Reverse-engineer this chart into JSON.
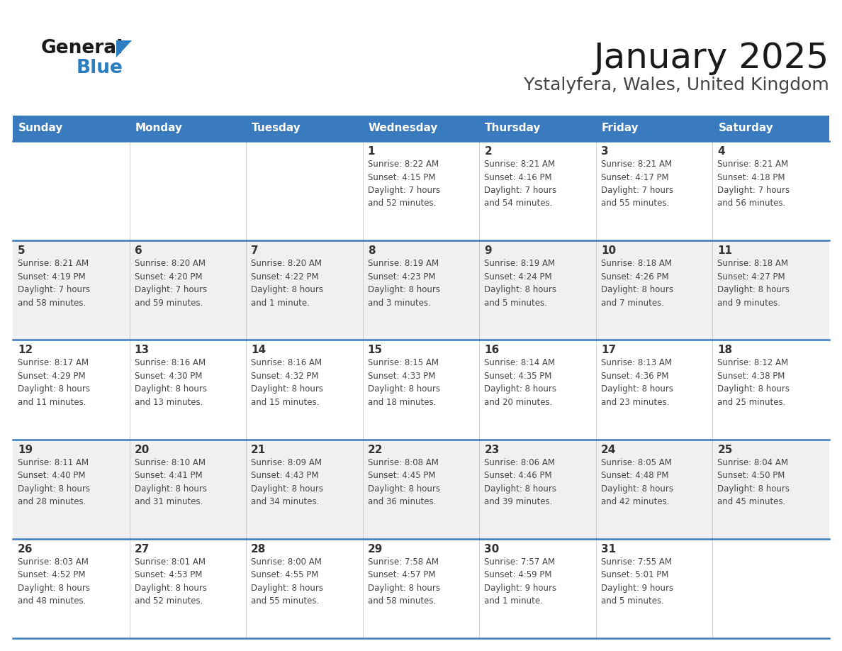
{
  "title": "January 2025",
  "subtitle": "Ystalyfera, Wales, United Kingdom",
  "days_of_week": [
    "Sunday",
    "Monday",
    "Tuesday",
    "Wednesday",
    "Thursday",
    "Friday",
    "Saturday"
  ],
  "header_bg": "#3a7abf",
  "header_text": "#ffffff",
  "row_bg_odd": "#ffffff",
  "row_bg_even": "#f0f0f0",
  "cell_text_color": "#444444",
  "day_num_color": "#333333",
  "divider_color": "#3a7abf",
  "calendar_data": [
    [
      {
        "day": "",
        "info": ""
      },
      {
        "day": "",
        "info": ""
      },
      {
        "day": "",
        "info": ""
      },
      {
        "day": "1",
        "info": "Sunrise: 8:22 AM\nSunset: 4:15 PM\nDaylight: 7 hours\nand 52 minutes."
      },
      {
        "day": "2",
        "info": "Sunrise: 8:21 AM\nSunset: 4:16 PM\nDaylight: 7 hours\nand 54 minutes."
      },
      {
        "day": "3",
        "info": "Sunrise: 8:21 AM\nSunset: 4:17 PM\nDaylight: 7 hours\nand 55 minutes."
      },
      {
        "day": "4",
        "info": "Sunrise: 8:21 AM\nSunset: 4:18 PM\nDaylight: 7 hours\nand 56 minutes."
      }
    ],
    [
      {
        "day": "5",
        "info": "Sunrise: 8:21 AM\nSunset: 4:19 PM\nDaylight: 7 hours\nand 58 minutes."
      },
      {
        "day": "6",
        "info": "Sunrise: 8:20 AM\nSunset: 4:20 PM\nDaylight: 7 hours\nand 59 minutes."
      },
      {
        "day": "7",
        "info": "Sunrise: 8:20 AM\nSunset: 4:22 PM\nDaylight: 8 hours\nand 1 minute."
      },
      {
        "day": "8",
        "info": "Sunrise: 8:19 AM\nSunset: 4:23 PM\nDaylight: 8 hours\nand 3 minutes."
      },
      {
        "day": "9",
        "info": "Sunrise: 8:19 AM\nSunset: 4:24 PM\nDaylight: 8 hours\nand 5 minutes."
      },
      {
        "day": "10",
        "info": "Sunrise: 8:18 AM\nSunset: 4:26 PM\nDaylight: 8 hours\nand 7 minutes."
      },
      {
        "day": "11",
        "info": "Sunrise: 8:18 AM\nSunset: 4:27 PM\nDaylight: 8 hours\nand 9 minutes."
      }
    ],
    [
      {
        "day": "12",
        "info": "Sunrise: 8:17 AM\nSunset: 4:29 PM\nDaylight: 8 hours\nand 11 minutes."
      },
      {
        "day": "13",
        "info": "Sunrise: 8:16 AM\nSunset: 4:30 PM\nDaylight: 8 hours\nand 13 minutes."
      },
      {
        "day": "14",
        "info": "Sunrise: 8:16 AM\nSunset: 4:32 PM\nDaylight: 8 hours\nand 15 minutes."
      },
      {
        "day": "15",
        "info": "Sunrise: 8:15 AM\nSunset: 4:33 PM\nDaylight: 8 hours\nand 18 minutes."
      },
      {
        "day": "16",
        "info": "Sunrise: 8:14 AM\nSunset: 4:35 PM\nDaylight: 8 hours\nand 20 minutes."
      },
      {
        "day": "17",
        "info": "Sunrise: 8:13 AM\nSunset: 4:36 PM\nDaylight: 8 hours\nand 23 minutes."
      },
      {
        "day": "18",
        "info": "Sunrise: 8:12 AM\nSunset: 4:38 PM\nDaylight: 8 hours\nand 25 minutes."
      }
    ],
    [
      {
        "day": "19",
        "info": "Sunrise: 8:11 AM\nSunset: 4:40 PM\nDaylight: 8 hours\nand 28 minutes."
      },
      {
        "day": "20",
        "info": "Sunrise: 8:10 AM\nSunset: 4:41 PM\nDaylight: 8 hours\nand 31 minutes."
      },
      {
        "day": "21",
        "info": "Sunrise: 8:09 AM\nSunset: 4:43 PM\nDaylight: 8 hours\nand 34 minutes."
      },
      {
        "day": "22",
        "info": "Sunrise: 8:08 AM\nSunset: 4:45 PM\nDaylight: 8 hours\nand 36 minutes."
      },
      {
        "day": "23",
        "info": "Sunrise: 8:06 AM\nSunset: 4:46 PM\nDaylight: 8 hours\nand 39 minutes."
      },
      {
        "day": "24",
        "info": "Sunrise: 8:05 AM\nSunset: 4:48 PM\nDaylight: 8 hours\nand 42 minutes."
      },
      {
        "day": "25",
        "info": "Sunrise: 8:04 AM\nSunset: 4:50 PM\nDaylight: 8 hours\nand 45 minutes."
      }
    ],
    [
      {
        "day": "26",
        "info": "Sunrise: 8:03 AM\nSunset: 4:52 PM\nDaylight: 8 hours\nand 48 minutes."
      },
      {
        "day": "27",
        "info": "Sunrise: 8:01 AM\nSunset: 4:53 PM\nDaylight: 8 hours\nand 52 minutes."
      },
      {
        "day": "28",
        "info": "Sunrise: 8:00 AM\nSunset: 4:55 PM\nDaylight: 8 hours\nand 55 minutes."
      },
      {
        "day": "29",
        "info": "Sunrise: 7:58 AM\nSunset: 4:57 PM\nDaylight: 8 hours\nand 58 minutes."
      },
      {
        "day": "30",
        "info": "Sunrise: 7:57 AM\nSunset: 4:59 PM\nDaylight: 9 hours\nand 1 minute."
      },
      {
        "day": "31",
        "info": "Sunrise: 7:55 AM\nSunset: 5:01 PM\nDaylight: 9 hours\nand 5 minutes."
      },
      {
        "day": "",
        "info": ""
      }
    ]
  ],
  "logo_general_color": "#1a1a1a",
  "logo_blue_color": "#2b7fc1",
  "title_color": "#1a1a1a",
  "subtitle_color": "#444444",
  "title_fontsize": 36,
  "subtitle_fontsize": 18,
  "header_fontsize": 11,
  "day_num_fontsize": 11,
  "cell_fontsize": 8.5
}
